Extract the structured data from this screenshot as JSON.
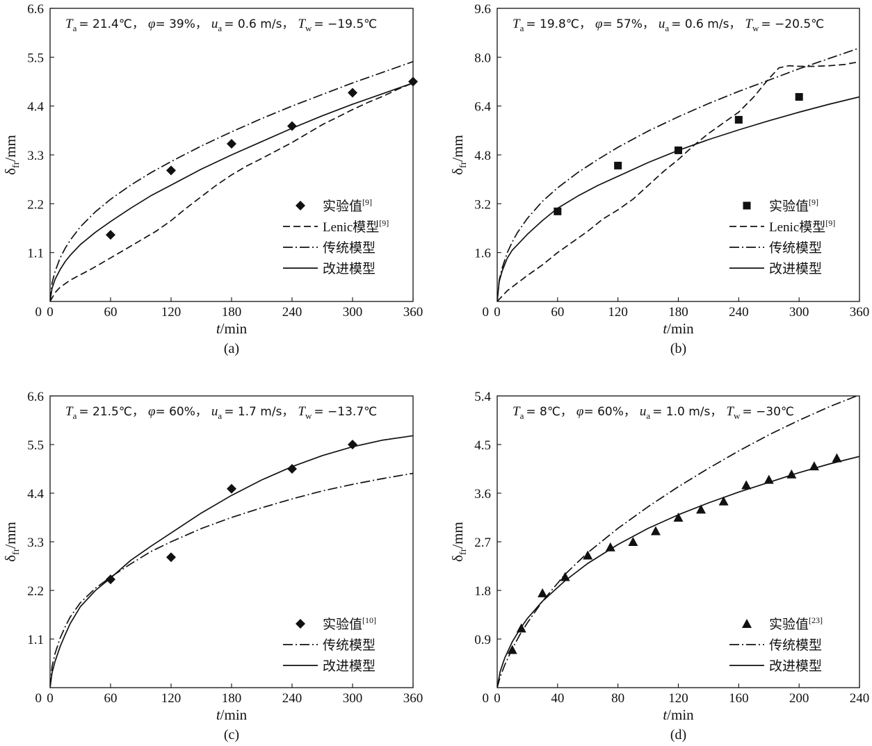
{
  "figure": {
    "panels": [
      {
        "id": "a",
        "caption": "(a)",
        "conditions": {
          "Ta_sym": "T",
          "Ta_sub": "a",
          "Ta_val": "= 21.4℃，",
          "phi_sym": "φ",
          "phi_val": "= 39%，",
          "ua_sym": "u",
          "ua_sub": "a",
          "ua_val": "= 0.6 m/s，",
          "Tw_sym": "T",
          "Tw_sub": "w",
          "Tw_val": "= −19.5℃"
        },
        "xlabel": {
          "sym": "t",
          "rest": "/min"
        },
        "ylabel": {
          "sym": "δ",
          "sub": "fr",
          "rest": "/mm"
        },
        "legend": [
          {
            "label": "实验值",
            "sup": "[9]",
            "kind": "marker"
          },
          {
            "label": "Lenic模型",
            "sup": "[9]",
            "kind": "dashed"
          },
          {
            "label": "传统模型",
            "sup": "",
            "kind": "dashdot"
          },
          {
            "label": "改进模型",
            "sup": "",
            "kind": "solid"
          }
        ]
      },
      {
        "id": "b",
        "caption": "(b)",
        "conditions": {
          "Ta_sym": "T",
          "Ta_sub": "a",
          "Ta_val": "= 19.8℃，",
          "phi_sym": "φ",
          "phi_val": "= 57%，",
          "ua_sym": "u",
          "ua_sub": "a",
          "ua_val": "= 0.6 m/s，",
          "Tw_sym": "T",
          "Tw_sub": "w",
          "Tw_val": "= −20.5℃"
        },
        "xlabel": {
          "sym": "t",
          "rest": "/min"
        },
        "ylabel": {
          "sym": "δ",
          "sub": "fr",
          "rest": "/mm"
        },
        "legend": [
          {
            "label": "实验值",
            "sup": "[9]",
            "kind": "marker"
          },
          {
            "label": "Lenic模型",
            "sup": "[9]",
            "kind": "dashed"
          },
          {
            "label": "传统模型",
            "sup": "",
            "kind": "dashdot"
          },
          {
            "label": "改进模型",
            "sup": "",
            "kind": "solid"
          }
        ]
      },
      {
        "id": "c",
        "caption": "(c)",
        "conditions": {
          "Ta_sym": "T",
          "Ta_sub": "a",
          "Ta_val": "= 21.5℃，",
          "phi_sym": "φ",
          "phi_val": "= 60%，",
          "ua_sym": "u",
          "ua_sub": "a",
          "ua_val": "= 1.7 m/s，",
          "Tw_sym": "T",
          "Tw_sub": "w",
          "Tw_val": "= −13.7℃"
        },
        "xlabel": {
          "sym": "t",
          "rest": "/min"
        },
        "ylabel": {
          "sym": "δ",
          "sub": "fr",
          "rest": "/mm"
        },
        "legend": [
          {
            "label": "实验值",
            "sup": "[10]",
            "kind": "marker"
          },
          {
            "label": "传统模型",
            "sup": "",
            "kind": "dashdot"
          },
          {
            "label": "改进模型",
            "sup": "",
            "kind": "solid"
          }
        ]
      },
      {
        "id": "d",
        "caption": "(d)",
        "conditions": {
          "Ta_sym": "T",
          "Ta_sub": "a",
          "Ta_val": "= 8℃，",
          "phi_sym": "φ",
          "phi_val": "= 60%，",
          "ua_sym": "u",
          "ua_sub": "a",
          "ua_val": "= 1.0 m/s，",
          "Tw_sym": "T",
          "Tw_sub": "w",
          "Tw_val": "= −30℃"
        },
        "xlabel": {
          "sym": "t",
          "rest": "/min"
        },
        "ylabel": {
          "sym": "δ",
          "sub": "fr",
          "rest": "/mm"
        },
        "legend": [
          {
            "label": "实验值",
            "sup": "[23]",
            "kind": "marker"
          },
          {
            "label": "传统模型",
            "sup": "",
            "kind": "dashdot"
          },
          {
            "label": "改进模型",
            "sup": "",
            "kind": "solid"
          }
        ]
      }
    ]
  },
  "chart_data": [
    {
      "type": "line",
      "panel": "a",
      "xlim": [
        0,
        360
      ],
      "ylim": [
        0,
        6.6
      ],
      "xticks": [
        0,
        60,
        120,
        180,
        240,
        300,
        360
      ],
      "yticks": [
        1.1,
        2.2,
        3.3,
        4.4,
        5.5,
        6.6
      ],
      "ytick_labels": [
        "1.1",
        "2.2",
        "3.3",
        "4.4",
        "5.5",
        "6.6"
      ],
      "grid": false,
      "legend_position": "bottom-right",
      "marker": "diamond",
      "series": [
        {
          "name": "实验值[9]",
          "kind": "marker",
          "x": [
            60,
            120,
            180,
            240,
            300,
            360
          ],
          "y": [
            1.5,
            2.95,
            3.55,
            3.95,
            4.7,
            4.95
          ]
        },
        {
          "name": "Lenic模型[9]",
          "kind": "dashed",
          "x": [
            0,
            5,
            10,
            20,
            30,
            40,
            50,
            60,
            75,
            90,
            105,
            120,
            135,
            150,
            165,
            180,
            195,
            210,
            225,
            240,
            255,
            270,
            285,
            300,
            315,
            330,
            345,
            360
          ],
          "y": [
            0,
            0.2,
            0.32,
            0.48,
            0.6,
            0.72,
            0.85,
            0.98,
            1.18,
            1.38,
            1.58,
            1.82,
            2.1,
            2.36,
            2.62,
            2.85,
            3.05,
            3.22,
            3.4,
            3.58,
            3.78,
            3.98,
            4.15,
            4.32,
            4.48,
            4.62,
            4.78,
            4.92
          ]
        },
        {
          "name": "传统模型",
          "kind": "dashdot",
          "x": [
            0,
            2,
            5,
            10,
            15,
            20,
            30,
            45,
            60,
            80,
            100,
            120,
            150,
            180,
            210,
            240,
            270,
            300,
            330,
            360
          ],
          "y": [
            0,
            0.42,
            0.68,
            0.98,
            1.2,
            1.38,
            1.68,
            2.02,
            2.3,
            2.62,
            2.9,
            3.15,
            3.5,
            3.82,
            4.12,
            4.4,
            4.66,
            4.92,
            5.16,
            5.4
          ]
        },
        {
          "name": "改进模型",
          "kind": "solid",
          "x": [
            0,
            2,
            5,
            10,
            15,
            20,
            30,
            45,
            60,
            80,
            100,
            120,
            150,
            180,
            210,
            240,
            270,
            300,
            330,
            360
          ],
          "y": [
            0,
            0.3,
            0.5,
            0.72,
            0.9,
            1.04,
            1.28,
            1.56,
            1.8,
            2.1,
            2.38,
            2.62,
            2.98,
            3.3,
            3.6,
            3.9,
            4.18,
            4.44,
            4.68,
            4.92
          ]
        }
      ]
    },
    {
      "type": "line",
      "panel": "b",
      "xlim": [
        0,
        360
      ],
      "ylim": [
        0,
        9.6
      ],
      "xticks": [
        0,
        60,
        120,
        180,
        240,
        300,
        360
      ],
      "yticks": [
        1.6,
        3.2,
        4.8,
        6.4,
        8.0,
        9.6
      ],
      "ytick_labels": [
        "1.6",
        "3.2",
        "4.8",
        "6.4",
        "8.0",
        "9.6"
      ],
      "grid": false,
      "legend_position": "bottom-right",
      "marker": "square",
      "series": [
        {
          "name": "实验值[9]",
          "kind": "marker",
          "x": [
            60,
            120,
            180,
            240,
            300
          ],
          "y": [
            2.95,
            4.45,
            4.95,
            5.95,
            6.7
          ]
        },
        {
          "name": "Lenic模型[9]",
          "kind": "dashed",
          "x": [
            0,
            10,
            20,
            30,
            45,
            60,
            75,
            90,
            105,
            120,
            135,
            150,
            165,
            180,
            195,
            210,
            225,
            240,
            255,
            270,
            280,
            290,
            300,
            315,
            330,
            345,
            360
          ],
          "y": [
            0,
            0.35,
            0.6,
            0.85,
            1.2,
            1.6,
            1.95,
            2.3,
            2.7,
            3.0,
            3.35,
            3.8,
            4.25,
            4.65,
            5.1,
            5.5,
            5.85,
            6.2,
            6.7,
            7.3,
            7.65,
            7.72,
            7.7,
            7.7,
            7.72,
            7.76,
            7.85
          ]
        },
        {
          "name": "传统模型",
          "kind": "dashdot",
          "x": [
            0,
            2,
            5,
            10,
            15,
            20,
            30,
            45,
            60,
            80,
            100,
            120,
            150,
            180,
            210,
            240,
            270,
            300,
            330,
            360
          ],
          "y": [
            0,
            0.7,
            1.1,
            1.6,
            1.95,
            2.25,
            2.72,
            3.28,
            3.72,
            4.22,
            4.65,
            5.05,
            5.58,
            6.05,
            6.48,
            6.88,
            7.25,
            7.62,
            7.96,
            8.3
          ]
        },
        {
          "name": "改进模型",
          "kind": "solid",
          "x": [
            0,
            2,
            5,
            10,
            15,
            20,
            30,
            45,
            60,
            80,
            100,
            120,
            150,
            180,
            210,
            240,
            270,
            300,
            330,
            360
          ],
          "y": [
            0,
            0.65,
            1.0,
            1.42,
            1.68,
            1.85,
            2.2,
            2.65,
            3.05,
            3.45,
            3.8,
            4.1,
            4.55,
            4.95,
            5.3,
            5.62,
            5.92,
            6.2,
            6.46,
            6.7
          ]
        }
      ]
    },
    {
      "type": "line",
      "panel": "c",
      "xlim": [
        0,
        360
      ],
      "ylim": [
        0,
        6.6
      ],
      "xticks": [
        0,
        60,
        120,
        180,
        240,
        300,
        360
      ],
      "yticks": [
        1.1,
        2.2,
        3.3,
        4.4,
        5.5,
        6.6
      ],
      "ytick_labels": [
        "1.1",
        "2.2",
        "3.3",
        "4.4",
        "5.5",
        "6.6"
      ],
      "grid": false,
      "legend_position": "bottom-right",
      "marker": "diamond",
      "series": [
        {
          "name": "实验值[10]",
          "kind": "marker",
          "x": [
            60,
            120,
            180,
            240,
            300
          ],
          "y": [
            2.45,
            2.95,
            4.5,
            4.95,
            5.5
          ]
        },
        {
          "name": "传统模型",
          "kind": "dashdot",
          "x": [
            0,
            2,
            5,
            10,
            15,
            20,
            30,
            45,
            60,
            80,
            100,
            120,
            150,
            180,
            210,
            240,
            270,
            300,
            330,
            360
          ],
          "y": [
            0,
            0.48,
            0.78,
            1.12,
            1.38,
            1.6,
            1.92,
            2.25,
            2.5,
            2.8,
            3.08,
            3.3,
            3.6,
            3.85,
            4.07,
            4.27,
            4.45,
            4.6,
            4.73,
            4.85
          ]
        },
        {
          "name": "改进模型",
          "kind": "solid",
          "x": [
            0,
            2,
            5,
            10,
            15,
            20,
            30,
            45,
            60,
            80,
            100,
            120,
            150,
            180,
            210,
            240,
            270,
            300,
            330,
            360
          ],
          "y": [
            0,
            0.34,
            0.6,
            0.93,
            1.2,
            1.45,
            1.83,
            2.2,
            2.48,
            2.88,
            3.2,
            3.5,
            3.95,
            4.35,
            4.7,
            5.0,
            5.25,
            5.45,
            5.6,
            5.7
          ]
        }
      ]
    },
    {
      "type": "line",
      "panel": "d",
      "xlim": [
        0,
        240
      ],
      "ylim": [
        0,
        5.4
      ],
      "xticks": [
        0,
        40,
        80,
        120,
        160,
        200,
        240
      ],
      "yticks": [
        0.9,
        1.8,
        2.7,
        3.6,
        4.5,
        5.4
      ],
      "ytick_labels": [
        "0.9",
        "1.8",
        "2.7",
        "3.6",
        "4.5",
        "5.4"
      ],
      "grid": false,
      "legend_position": "bottom-right",
      "marker": "triangle",
      "series": [
        {
          "name": "实验值[23]",
          "kind": "marker",
          "x": [
            10,
            16,
            30,
            45,
            60,
            75,
            90,
            105,
            120,
            135,
            150,
            165,
            180,
            195,
            210,
            225
          ],
          "y": [
            0.7,
            1.1,
            1.75,
            2.05,
            2.45,
            2.6,
            2.7,
            2.9,
            3.15,
            3.3,
            3.45,
            3.75,
            3.85,
            3.95,
            4.1,
            4.25
          ]
        },
        {
          "name": "传统模型",
          "kind": "dashdot",
          "x": [
            0,
            2,
            5,
            10,
            15,
            20,
            30,
            45,
            60,
            80,
            100,
            120,
            140,
            160,
            180,
            200,
            220,
            240
          ],
          "y": [
            0,
            0.2,
            0.42,
            0.72,
            0.98,
            1.2,
            1.6,
            2.1,
            2.5,
            2.95,
            3.35,
            3.72,
            4.06,
            4.38,
            4.68,
            4.95,
            5.2,
            5.42
          ]
        },
        {
          "name": "改进模型",
          "kind": "solid",
          "x": [
            0,
            2,
            5,
            10,
            15,
            20,
            30,
            45,
            60,
            80,
            100,
            120,
            140,
            160,
            180,
            200,
            220,
            240
          ],
          "y": [
            0,
            0.3,
            0.55,
            0.85,
            1.08,
            1.28,
            1.6,
            1.98,
            2.3,
            2.65,
            2.95,
            3.2,
            3.42,
            3.62,
            3.8,
            3.98,
            4.14,
            4.28
          ]
        }
      ]
    }
  ]
}
